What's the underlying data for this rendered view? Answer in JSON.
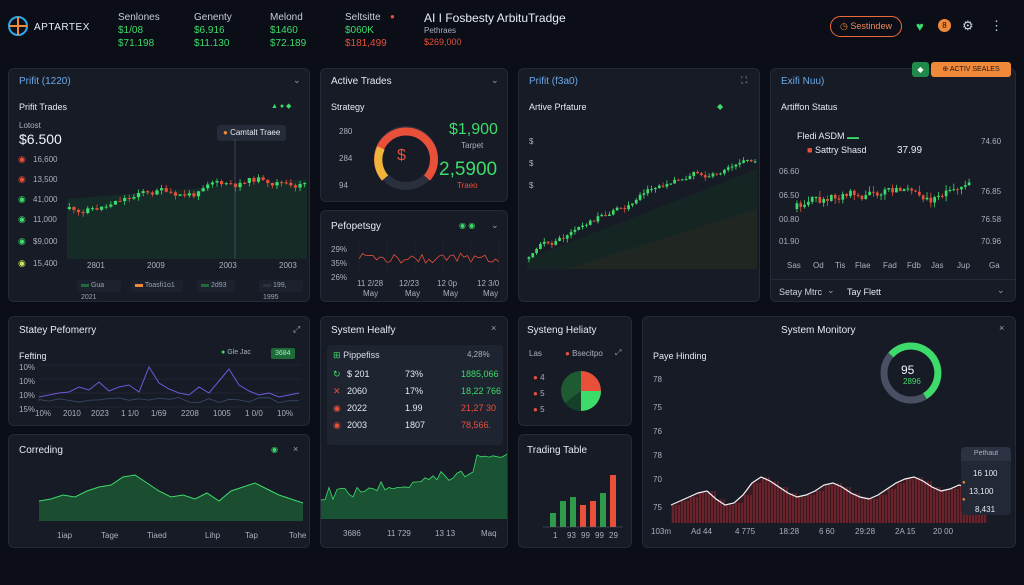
{
  "app": {
    "brand": "APTARTEX",
    "title": "AI I Fosbesty ArbituTradge",
    "subtitle": "Pethraes"
  },
  "header_stats": [
    {
      "label": "Senlones",
      "v1": "$1/08",
      "v2": "$71.198",
      "c1": "#3ddc6a",
      "c2": "#3ddc6a"
    },
    {
      "label": "Genenty",
      "v1": "$6.916",
      "v2": "$11.130",
      "c1": "#3ddc6a",
      "c2": "#3ddc6a"
    },
    {
      "label": "Melond",
      "v1": "$1460",
      "v2": "$72.189",
      "c1": "#3ddc6a",
      "c2": "#3ddc6a"
    },
    {
      "label": "Seltsitte",
      "v1": "$060K",
      "v2": "$181,499",
      "c1": "#3ddc6a",
      "c2": "#e8503a"
    }
  ],
  "header_sub_value": "$269,000",
  "header_button": "Sestindew",
  "header_badge": "8",
  "profit_panel": {
    "title": "Prifit (1220)",
    "subtitle": "Prifit Trades",
    "headline_label": "Lotost",
    "headline": "$6.500",
    "tooltip": "Camtalt Traee",
    "yaxis": [
      "16,600",
      "13,500",
      "41,000",
      "11,000",
      "$9,000",
      "15,400"
    ],
    "xaxis": [
      "2801",
      "2009",
      "2003",
      "2003"
    ],
    "legend": [
      "Gua 2021",
      "Toasfi1o1",
      "2d93",
      "199, 1995"
    ]
  },
  "active_trades": {
    "title": "Active Trades",
    "strategy": "Strategy",
    "nums": [
      "280",
      "284",
      "94"
    ],
    "gauge_symbol": "$",
    "value1": "$1,900",
    "value1_note": "Tarpet",
    "value2": "2,5900",
    "value2_note": "Traeo"
  },
  "profit2": {
    "title": "Prifit (f3a0)",
    "subtitle": "Artive Prfature"
  },
  "exit_panel": {
    "title": "Exifi Nuu)",
    "badge": "ACTIV SEALES",
    "subtitle": "Artiffon Status",
    "legend1": "Fledi ASDM",
    "legend2": "Sattry Shasd",
    "value": "37.99",
    "yaxis": [
      "74.60",
      "76.85",
      "76.58",
      "70.96"
    ],
    "left_axis": [
      "06.60",
      "06.50",
      "00.80",
      "01.90"
    ],
    "xaxis": [
      "Sas",
      "Od",
      "Tis",
      "Flae",
      "Fad",
      "Fdb",
      "Jas",
      "Jup",
      "Ga"
    ],
    "select": "Setay Mtrc",
    "select_value": "Tay Flett"
  },
  "peformsy": {
    "title": "Pefopetsgy",
    "yaxis": [
      "29%",
      "35%",
      "26%"
    ],
    "xaxis": [
      "11 2/28",
      "12/23",
      "12 0p",
      "12 3/0"
    ],
    "xsub": [
      "May",
      "May",
      "May",
      "May"
    ]
  },
  "strat_perf": {
    "title": "Statey Pefomerry",
    "subtitle": "Fefting",
    "chip1": "Gle Jac",
    "chip2": "3684",
    "yaxis": [
      "10%",
      "10%",
      "10%",
      "15%"
    ],
    "xaxis": [
      "10%",
      "2010",
      "2023",
      "1 1/0",
      "1/69",
      "2208",
      "1005",
      "1 0/0",
      "10%"
    ]
  },
  "system_health": {
    "title": "System Healfy",
    "header_label": "Pippefiss",
    "header_val": "4,28%",
    "rows": [
      {
        "a": "$ 201",
        "b": "73%",
        "c": "1885,066"
      },
      {
        "a": "2060",
        "b": "17%",
        "c": "18,22 766"
      },
      {
        "a": "2022",
        "b": "1.99",
        "c": "21,27 30"
      },
      {
        "a": "2003",
        "b": "1807",
        "c": "78,566."
      }
    ],
    "xaxis": [
      "3686",
      "11 729",
      "13 13",
      "Maq"
    ]
  },
  "system_health2": {
    "title": "Systeng Heliaty",
    "legend": "Bsecitpo",
    "leftlab": "Las",
    "nums": [
      "4",
      "5",
      "5"
    ]
  },
  "trading_table": {
    "title": "Trading Table",
    "xaxis": [
      "1",
      "93",
      "99",
      "99",
      "29"
    ]
  },
  "system_monitory": {
    "title": "System Monitory",
    "subtitle": "Paye Hinding",
    "gauge_value": "95",
    "gauge_sub": "2896",
    "yaxis": [
      "78",
      "75",
      "76",
      "78",
      "70",
      "75"
    ],
    "xaxis": [
      "103m",
      "Ad 44",
      "4 775",
      "18:28",
      "6 60",
      "29:28",
      "2A 15",
      "20 00"
    ],
    "side_title": "Pethaut",
    "side_vals": [
      "16 100",
      "13,100",
      "8,431"
    ]
  },
  "correcting": {
    "title": "Correding",
    "xaxis": [
      "1iap",
      "Tage",
      "Tiaed",
      "Lihp",
      "Tap",
      "Tohe"
    ]
  },
  "icons": {
    "close": "×",
    "chevron": "⌄",
    "heart": "♥",
    "gear": "⚙",
    "dots": "⋮"
  }
}
